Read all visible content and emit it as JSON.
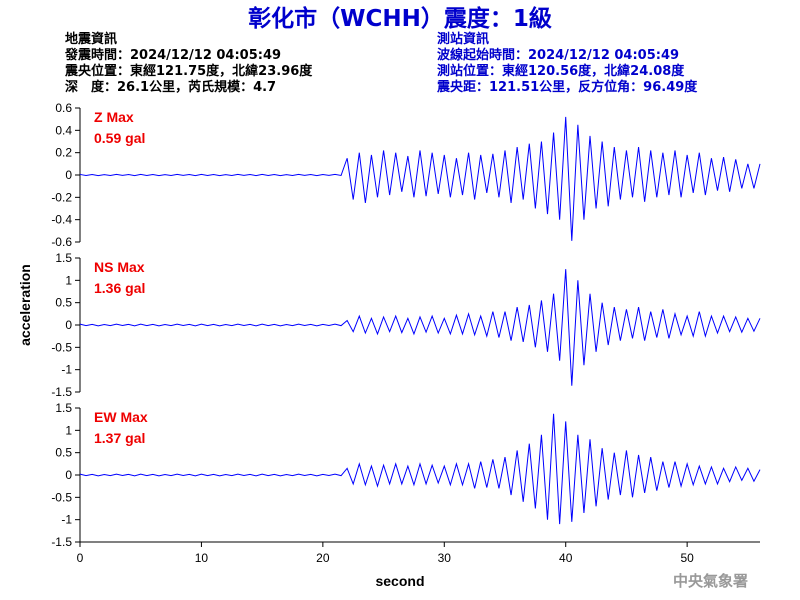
{
  "header": {
    "title": "彰化市（WCHH）震度：1級",
    "event_info": [
      "地震資訊",
      "發震時間：2024/12/12 04:05:49",
      "震央位置：東經121.75度，北緯23.96度",
      "深　度：26.1公里，芮氏規模：4.7"
    ],
    "station_info": [
      "測站資訊",
      "波線起始時間：2024/12/12 04:05:49",
      "測站位置：東經120.56度，北緯24.08度",
      "震央距：121.51公里，反方位角：96.49度"
    ]
  },
  "y_axis_label": "acceleration",
  "x_axis_label": "second",
  "footer": "中央氣象署",
  "chart_data": [
    {
      "type": "line",
      "label": "Z Max",
      "max_label": "0.59 gal",
      "color": "#0000ff",
      "xlim": [
        0,
        56
      ],
      "ylim": [
        -0.6,
        0.6
      ],
      "yticks": [
        -0.6,
        -0.4,
        -0.2,
        0,
        0.2,
        0.4,
        0.6
      ],
      "x": [
        0,
        0.5,
        1,
        1.5,
        2,
        2.5,
        3,
        3.5,
        4,
        4.5,
        5,
        5.5,
        6,
        6.5,
        7,
        7.5,
        8,
        8.5,
        9,
        9.5,
        10,
        10.5,
        11,
        11.5,
        12,
        12.5,
        13,
        13.5,
        14,
        14.5,
        15,
        15.5,
        16,
        16.5,
        17,
        17.5,
        18,
        18.5,
        19,
        19.5,
        20,
        20.5,
        21,
        21.5,
        22,
        22.5,
        23,
        23.5,
        24,
        24.5,
        25,
        25.5,
        26,
        26.5,
        27,
        27.5,
        28,
        28.5,
        29,
        29.5,
        30,
        30.5,
        31,
        31.5,
        32,
        32.5,
        33,
        33.5,
        34,
        34.5,
        35,
        35.5,
        36,
        36.5,
        37,
        37.5,
        38,
        38.5,
        39,
        39.5,
        40,
        40.5,
        41,
        41.5,
        42,
        42.5,
        43,
        43.5,
        44,
        44.5,
        45,
        45.5,
        46,
        46.5,
        47,
        47.5,
        48,
        48.5,
        49,
        49.5,
        50,
        50.5,
        51,
        51.5,
        52,
        52.5,
        53,
        53.5,
        54,
        54.5,
        55,
        55.5,
        56
      ],
      "values": [
        0.005,
        -0.004,
        0.004,
        -0.005,
        0.003,
        -0.004,
        0.005,
        -0.003,
        0.004,
        -0.005,
        0.005,
        -0.004,
        0.004,
        -0.005,
        0.003,
        -0.004,
        0.005,
        -0.003,
        0.004,
        -0.005,
        0.005,
        -0.004,
        0.004,
        -0.005,
        0.003,
        -0.004,
        0.005,
        -0.003,
        0.004,
        -0.005,
        0.005,
        -0.004,
        0.004,
        -0.005,
        0.003,
        -0.004,
        0.005,
        -0.003,
        0.004,
        -0.005,
        0.004,
        -0.003,
        0.005,
        -0.004,
        0.15,
        -0.22,
        0.2,
        -0.25,
        0.18,
        -0.2,
        0.22,
        -0.18,
        0.2,
        -0.15,
        0.17,
        -0.2,
        0.22,
        -0.19,
        0.2,
        -0.17,
        0.18,
        -0.2,
        0.15,
        -0.18,
        0.2,
        -0.22,
        0.18,
        -0.16,
        0.19,
        -0.2,
        0.22,
        -0.25,
        0.25,
        -0.22,
        0.28,
        -0.3,
        0.3,
        -0.35,
        0.38,
        -0.4,
        0.52,
        -0.59,
        0.45,
        -0.4,
        0.35,
        -0.3,
        0.3,
        -0.28,
        0.25,
        -0.22,
        0.22,
        -0.2,
        0.25,
        -0.24,
        0.22,
        -0.2,
        0.2,
        -0.18,
        0.22,
        -0.2,
        0.18,
        -0.16,
        0.2,
        -0.18,
        0.15,
        -0.14,
        0.16,
        -0.15,
        0.14,
        -0.12,
        0.1,
        -0.12,
        0.1
      ]
    },
    {
      "type": "line",
      "label": "NS Max",
      "max_label": "1.36 gal",
      "color": "#0000ff",
      "xlim": [
        0,
        56
      ],
      "ylim": [
        -1.5,
        1.5
      ],
      "yticks": [
        -1.5,
        -1,
        -0.5,
        0,
        0.5,
        1,
        1.5
      ],
      "x": [
        0,
        0.5,
        1,
        1.5,
        2,
        2.5,
        3,
        3.5,
        4,
        4.5,
        5,
        5.5,
        6,
        6.5,
        7,
        7.5,
        8,
        8.5,
        9,
        9.5,
        10,
        10.5,
        11,
        11.5,
        12,
        12.5,
        13,
        13.5,
        14,
        14.5,
        15,
        15.5,
        16,
        16.5,
        17,
        17.5,
        18,
        18.5,
        19,
        19.5,
        20,
        20.5,
        21,
        21.5,
        22,
        22.5,
        23,
        23.5,
        24,
        24.5,
        25,
        25.5,
        26,
        26.5,
        27,
        27.5,
        28,
        28.5,
        29,
        29.5,
        30,
        30.5,
        31,
        31.5,
        32,
        32.5,
        33,
        33.5,
        34,
        34.5,
        35,
        35.5,
        36,
        36.5,
        37,
        37.5,
        38,
        38.5,
        39,
        39.5,
        40,
        40.5,
        41,
        41.5,
        42,
        42.5,
        43,
        43.5,
        44,
        44.5,
        45,
        45.5,
        46,
        46.5,
        47,
        47.5,
        48,
        48.5,
        49,
        49.5,
        50,
        50.5,
        51,
        51.5,
        52,
        52.5,
        53,
        53.5,
        54,
        54.5,
        55,
        55.5,
        56
      ],
      "values": [
        0.02,
        -0.015,
        0.015,
        -0.02,
        0.01,
        -0.015,
        0.02,
        -0.01,
        0.015,
        -0.02,
        0.02,
        -0.015,
        0.015,
        -0.02,
        0.01,
        -0.015,
        0.02,
        -0.01,
        0.015,
        -0.02,
        0.02,
        -0.015,
        0.015,
        -0.02,
        0.01,
        -0.015,
        0.02,
        -0.01,
        0.015,
        -0.02,
        0.02,
        -0.015,
        0.015,
        -0.02,
        0.01,
        -0.015,
        0.02,
        -0.01,
        0.015,
        -0.02,
        0.015,
        -0.01,
        0.02,
        -0.015,
        0.1,
        -0.15,
        0.2,
        -0.18,
        0.15,
        -0.2,
        0.18,
        -0.15,
        0.2,
        -0.17,
        0.15,
        -0.2,
        0.18,
        -0.16,
        0.2,
        -0.18,
        0.15,
        -0.2,
        0.22,
        -0.2,
        0.25,
        -0.22,
        0.2,
        -0.25,
        0.3,
        -0.28,
        0.3,
        -0.35,
        0.4,
        -0.38,
        0.45,
        -0.5,
        0.55,
        -0.6,
        0.7,
        -0.8,
        1.25,
        -1.36,
        1.0,
        -0.9,
        0.7,
        -0.6,
        0.5,
        -0.45,
        0.4,
        -0.35,
        0.35,
        -0.3,
        0.4,
        -0.35,
        0.3,
        -0.28,
        0.35,
        -0.3,
        0.25,
        -0.22,
        0.2,
        -0.25,
        0.3,
        -0.25,
        0.2,
        -0.18,
        0.2,
        -0.15,
        0.18,
        -0.16,
        0.15,
        -0.14,
        0.15
      ]
    },
    {
      "type": "line",
      "label": "EW Max",
      "max_label": "1.37 gal",
      "color": "#0000ff",
      "xlim": [
        0,
        56
      ],
      "ylim": [
        -1.5,
        1.5
      ],
      "yticks": [
        -1.5,
        -1,
        -0.5,
        0,
        0.5,
        1,
        1.5
      ],
      "xticks": [
        0,
        10,
        20,
        30,
        40,
        50
      ],
      "x": [
        0,
        0.5,
        1,
        1.5,
        2,
        2.5,
        3,
        3.5,
        4,
        4.5,
        5,
        5.5,
        6,
        6.5,
        7,
        7.5,
        8,
        8.5,
        9,
        9.5,
        10,
        10.5,
        11,
        11.5,
        12,
        12.5,
        13,
        13.5,
        14,
        14.5,
        15,
        15.5,
        16,
        16.5,
        17,
        17.5,
        18,
        18.5,
        19,
        19.5,
        20,
        20.5,
        21,
        21.5,
        22,
        22.5,
        23,
        23.5,
        24,
        24.5,
        25,
        25.5,
        26,
        26.5,
        27,
        27.5,
        28,
        28.5,
        29,
        29.5,
        30,
        30.5,
        31,
        31.5,
        32,
        32.5,
        33,
        33.5,
        34,
        34.5,
        35,
        35.5,
        36,
        36.5,
        37,
        37.5,
        38,
        38.5,
        39,
        39.5,
        40,
        40.5,
        41,
        41.5,
        42,
        42.5,
        43,
        43.5,
        44,
        44.5,
        45,
        45.5,
        46,
        46.5,
        47,
        47.5,
        48,
        48.5,
        49,
        49.5,
        50,
        50.5,
        51,
        51.5,
        52,
        52.5,
        53,
        53.5,
        54,
        54.5,
        55,
        55.5,
        56
      ],
      "values": [
        0.02,
        -0.015,
        0.015,
        -0.02,
        0.01,
        -0.015,
        0.02,
        -0.01,
        0.015,
        -0.02,
        0.02,
        -0.015,
        0.015,
        -0.02,
        0.01,
        -0.015,
        0.02,
        -0.01,
        0.015,
        -0.02,
        0.02,
        -0.015,
        0.015,
        -0.02,
        0.01,
        -0.015,
        0.02,
        -0.01,
        0.015,
        -0.02,
        0.02,
        -0.015,
        0.015,
        -0.02,
        0.01,
        -0.015,
        0.02,
        -0.01,
        0.015,
        -0.02,
        0.015,
        -0.01,
        0.02,
        -0.015,
        0.15,
        -0.2,
        0.25,
        -0.22,
        0.2,
        -0.25,
        0.22,
        -0.2,
        0.25,
        -0.2,
        0.2,
        -0.22,
        0.25,
        -0.2,
        0.22,
        -0.18,
        0.2,
        -0.22,
        0.25,
        -0.22,
        0.25,
        -0.3,
        0.3,
        -0.28,
        0.35,
        -0.3,
        0.4,
        -0.45,
        0.55,
        -0.6,
        0.7,
        -0.75,
        0.9,
        -1.0,
        1.37,
        -1.1,
        1.2,
        -1.05,
        0.9,
        -0.85,
        0.8,
        -0.7,
        0.6,
        -0.55,
        0.5,
        -0.45,
        0.55,
        -0.5,
        0.45,
        -0.4,
        0.4,
        -0.35,
        0.3,
        -0.28,
        0.3,
        -0.25,
        0.25,
        -0.22,
        0.2,
        -0.2,
        0.18,
        -0.2,
        0.15,
        -0.15,
        0.18,
        -0.12,
        0.15,
        -0.14,
        0.12
      ]
    }
  ]
}
